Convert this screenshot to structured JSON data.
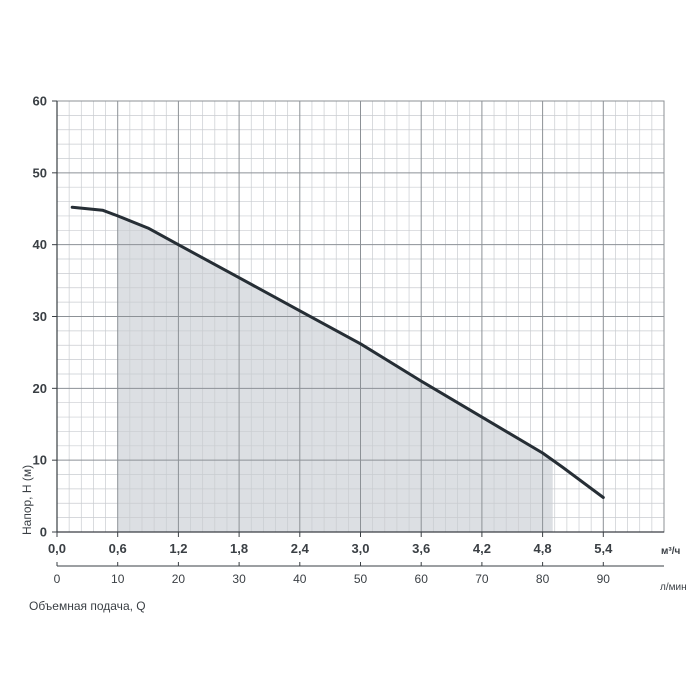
{
  "chart_data": {
    "type": "line",
    "ylabel": "Напор, H (м)",
    "xlabel": "Объемная подача, Q",
    "x_unit": "м³/ч",
    "x2_unit": "л/мин",
    "ylim": [
      0,
      60
    ],
    "xlim": [
      0,
      6.0
    ],
    "grid": true,
    "y_ticks": [
      "0",
      "10",
      "20",
      "30",
      "40",
      "50",
      "60"
    ],
    "x_ticks": [
      "0,0",
      "0,6",
      "1,2",
      "1,8",
      "2,4",
      "3,0",
      "3,6",
      "4,2",
      "4,8",
      "5,4"
    ],
    "x2_ticks": [
      "0",
      "10",
      "20",
      "30",
      "40",
      "50",
      "60",
      "70",
      "80",
      "90"
    ],
    "series": [
      {
        "x": [
          0.15,
          0.45,
          0.6,
          0.9,
          1.2,
          1.8,
          2.4,
          3.0,
          3.6,
          4.2,
          4.8,
          5.0,
          5.4
        ],
        "y": [
          45.2,
          44.8,
          44.0,
          42.3,
          40.0,
          35.4,
          30.8,
          26.2,
          21.0,
          16.0,
          11.0,
          9.0,
          4.8
        ]
      }
    ],
    "working_range": [
      0.6,
      4.9
    ],
    "colors": {
      "curve": "#262e35",
      "fill": "#dcdfe3",
      "grid_major": "#8c9196",
      "grid_minor": "#c9ccd0",
      "axis": "#3a3f44"
    }
  }
}
